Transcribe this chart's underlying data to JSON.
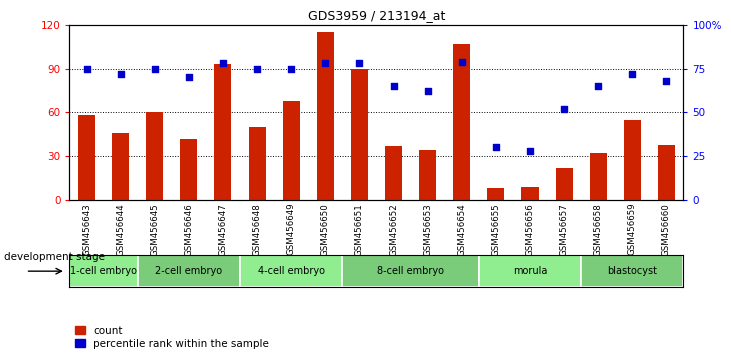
{
  "title": "GDS3959 / 213194_at",
  "samples": [
    "GSM456643",
    "GSM456644",
    "GSM456645",
    "GSM456646",
    "GSM456647",
    "GSM456648",
    "GSM456649",
    "GSM456650",
    "GSM456651",
    "GSM456652",
    "GSM456653",
    "GSM456654",
    "GSM456655",
    "GSM456656",
    "GSM456657",
    "GSM456658",
    "GSM456659",
    "GSM456660"
  ],
  "counts": [
    58,
    46,
    60,
    42,
    93,
    50,
    68,
    115,
    90,
    37,
    34,
    107,
    8,
    9,
    22,
    32,
    55,
    38
  ],
  "percentiles": [
    75,
    72,
    75,
    70,
    78,
    75,
    75,
    78,
    78,
    65,
    62,
    79,
    30,
    28,
    52,
    65,
    72,
    68
  ],
  "stages": [
    {
      "label": "1-cell embryo",
      "start": 0,
      "end": 2
    },
    {
      "label": "2-cell embryo",
      "start": 2,
      "end": 5
    },
    {
      "label": "4-cell embryo",
      "start": 5,
      "end": 8
    },
    {
      "label": "8-cell embryo",
      "start": 8,
      "end": 12
    },
    {
      "label": "morula",
      "start": 12,
      "end": 15
    },
    {
      "label": "blastocyst",
      "start": 15,
      "end": 18
    }
  ],
  "bar_color": "#CC2200",
  "dot_color": "#0000CC",
  "ylim_left": [
    0,
    120
  ],
  "ylim_right": [
    0,
    100
  ],
  "yticks_left": [
    0,
    30,
    60,
    90,
    120
  ],
  "yticks_right": [
    0,
    25,
    50,
    75,
    100
  ],
  "grid_lines": [
    30,
    60,
    90
  ],
  "bar_width": 0.5,
  "stage_green": "#90EE90",
  "stage_green2": "#7ACC7A",
  "xtick_bg": "#C8C8C8",
  "legend_count_label": "count",
  "legend_pct_label": "percentile rank within the sample",
  "dev_stage_label": "development stage"
}
